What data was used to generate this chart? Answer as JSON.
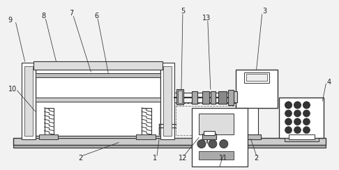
{
  "bg_color": "#f2f2f2",
  "line_color": "#333333",
  "label_color": "#222222",
  "figsize": [
    4.86,
    2.44
  ],
  "dpi": 100,
  "label_fontsize": 7.0
}
